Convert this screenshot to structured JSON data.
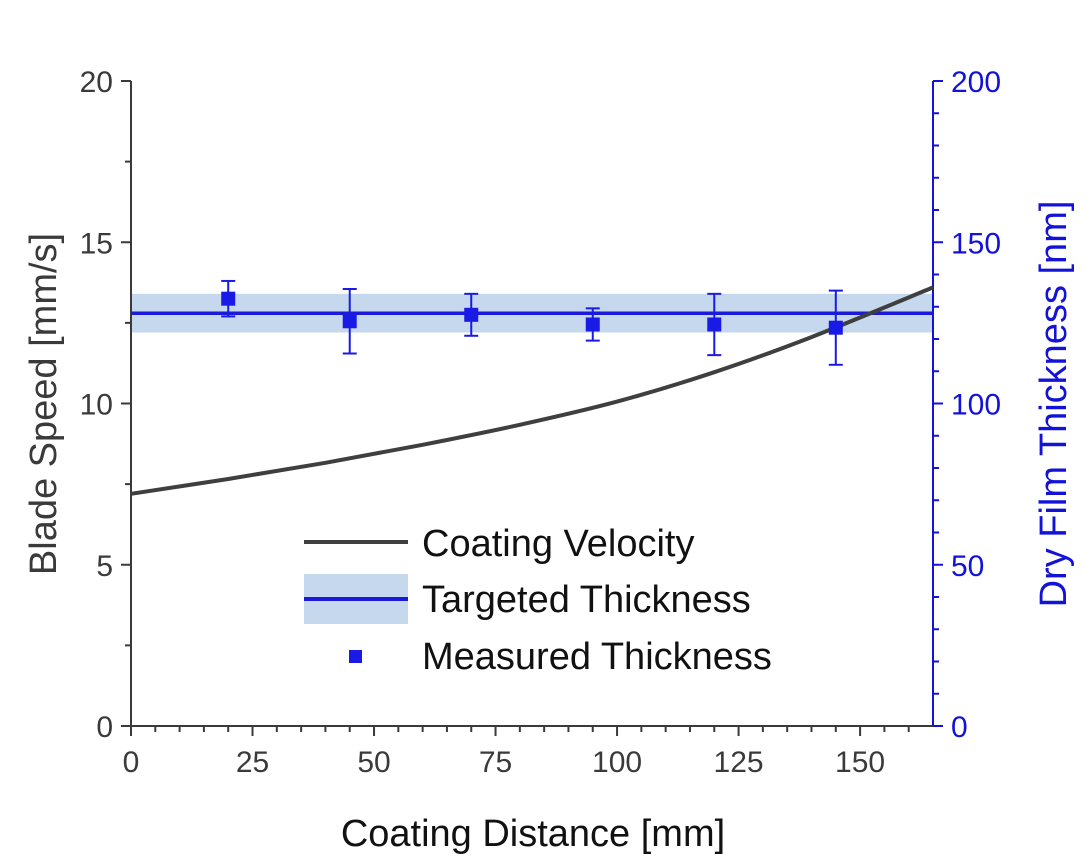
{
  "chart_data": {
    "type": "line",
    "title": "",
    "xlabel": "Coating Distance [mm]",
    "ylabel": "Blade Speed [mm/s]",
    "y2label": "Dry Film Thickness [nm]",
    "xlim": [
      0,
      165
    ],
    "ylim": [
      0,
      20
    ],
    "y2lim": [
      0,
      200
    ],
    "xticks": [
      0,
      25,
      50,
      75,
      100,
      125,
      150
    ],
    "yticks": [
      0,
      5,
      10,
      15,
      20
    ],
    "y2ticks": [
      0,
      50,
      100,
      150,
      200
    ],
    "legend_position": "lower-center",
    "series": [
      {
        "name": "Coating Velocity",
        "axis": "left",
        "color": "#3f3f3f",
        "x": [
          0,
          20,
          40,
          60,
          80,
          100,
          120,
          140,
          165
        ],
        "y": [
          7.2,
          7.66,
          8.16,
          8.72,
          9.34,
          10.06,
          10.97,
          12.06,
          13.6
        ]
      },
      {
        "name": "Targeted Thickness",
        "axis": "right",
        "color": "#1a1ad8",
        "band_color": "#c6d8ee",
        "value": 128,
        "band": [
          122,
          134
        ]
      },
      {
        "name": "Measured Thickness",
        "axis": "right",
        "color": "#1a1ae6",
        "x": [
          20,
          45,
          70,
          95,
          120,
          145
        ],
        "y": [
          132.5,
          125.5,
          127.5,
          124.5,
          124.5,
          123.5
        ],
        "error": [
          5.5,
          10,
          6.5,
          5,
          9.5,
          11.5
        ]
      }
    ]
  }
}
